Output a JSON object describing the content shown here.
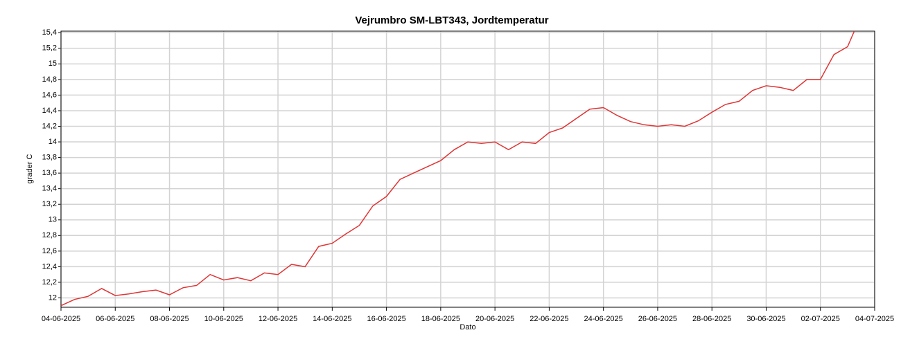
{
  "chart_data": {
    "type": "line",
    "title": "Vejrumbro SM-LBT343, Jordtemperatur",
    "x_label": "Dato",
    "y_label": "grader C",
    "x": [
      "04-06-2025 00:00",
      "04-06-2025 12:00",
      "05-06-2025 00:00",
      "05-06-2025 12:00",
      "06-06-2025 00:00",
      "06-06-2025 12:00",
      "07-06-2025 00:00",
      "07-06-2025 12:00",
      "08-06-2025 00:00",
      "08-06-2025 12:00",
      "09-06-2025 00:00",
      "09-06-2025 12:00",
      "10-06-2025 00:00",
      "10-06-2025 12:00",
      "11-06-2025 00:00",
      "11-06-2025 12:00",
      "12-06-2025 00:00",
      "12-06-2025 12:00",
      "13-06-2025 00:00",
      "13-06-2025 12:00",
      "14-06-2025 00:00",
      "14-06-2025 12:00",
      "15-06-2025 00:00",
      "15-06-2025 12:00",
      "16-06-2025 00:00",
      "16-06-2025 12:00",
      "17-06-2025 00:00",
      "17-06-2025 12:00",
      "18-06-2025 00:00",
      "18-06-2025 12:00",
      "19-06-2025 00:00",
      "19-06-2025 12:00",
      "20-06-2025 00:00",
      "20-06-2025 12:00",
      "21-06-2025 00:00",
      "21-06-2025 12:00",
      "22-06-2025 00:00",
      "22-06-2025 12:00",
      "23-06-2025 00:00",
      "23-06-2025 12:00",
      "24-06-2025 00:00",
      "24-06-2025 12:00",
      "25-06-2025 00:00",
      "25-06-2025 12:00",
      "26-06-2025 00:00",
      "26-06-2025 12:00",
      "27-06-2025 00:00",
      "27-06-2025 12:00",
      "28-06-2025 00:00",
      "28-06-2025 12:00",
      "29-06-2025 00:00",
      "29-06-2025 12:00",
      "30-06-2025 00:00",
      "30-06-2025 12:00",
      "01-07-2025 00:00",
      "01-07-2025 12:00",
      "02-07-2025 00:00",
      "02-07-2025 12:00",
      "03-07-2025 00:00",
      "03-07-2025 06:00"
    ],
    "series": [
      {
        "name": "Jordtemperatur",
        "color": "#e03434",
        "values": [
          11.9,
          11.98,
          12.02,
          12.12,
          12.03,
          12.05,
          12.08,
          12.1,
          12.04,
          12.13,
          12.16,
          12.3,
          12.23,
          12.26,
          12.22,
          12.32,
          12.3,
          12.43,
          12.4,
          12.66,
          12.7,
          12.82,
          12.93,
          13.18,
          13.3,
          13.52,
          13.6,
          13.68,
          13.76,
          13.9,
          14.0,
          13.98,
          14.0,
          13.9,
          14.0,
          13.98,
          14.12,
          14.18,
          14.3,
          14.42,
          14.44,
          14.34,
          14.26,
          14.22,
          14.2,
          14.22,
          14.2,
          14.27,
          14.38,
          14.48,
          14.52,
          14.66,
          14.72,
          14.7,
          14.66,
          14.8,
          14.8,
          15.12,
          15.22,
          15.42
        ]
      }
    ],
    "xlim": [
      "04-06-2025",
      "04-07-2025"
    ],
    "xticks": [
      "04-06-2025",
      "06-06-2025",
      "08-06-2025",
      "10-06-2025",
      "12-06-2025",
      "14-06-2025",
      "16-06-2025",
      "18-06-2025",
      "20-06-2025",
      "22-06-2025",
      "24-06-2025",
      "26-06-2025",
      "28-06-2025",
      "30-06-2025",
      "02-07-2025",
      "04-07-2025"
    ],
    "ylim": [
      11.88,
      15.42
    ],
    "yticks": [
      12,
      {
        "value": 12.2,
        "label": "12,2"
      },
      {
        "value": 12.4,
        "label": "12,4"
      },
      {
        "value": 12.6,
        "label": "12,6"
      },
      {
        "value": 12.8,
        "label": "12,8"
      },
      13,
      {
        "value": 13.2,
        "label": "13,2"
      },
      {
        "value": 13.4,
        "label": "13,4"
      },
      {
        "value": 13.6,
        "label": "13,6"
      },
      {
        "value": 13.8,
        "label": "13,8"
      },
      14,
      {
        "value": 14.2,
        "label": "14,2"
      },
      {
        "value": 14.4,
        "label": "14,4"
      },
      {
        "value": 14.6,
        "label": "14,6"
      },
      {
        "value": 14.8,
        "label": "14,8"
      },
      15,
      {
        "value": 15.2,
        "label": "15,2"
      },
      {
        "value": 15.4,
        "label": "15,4"
      }
    ],
    "grid": true
  }
}
